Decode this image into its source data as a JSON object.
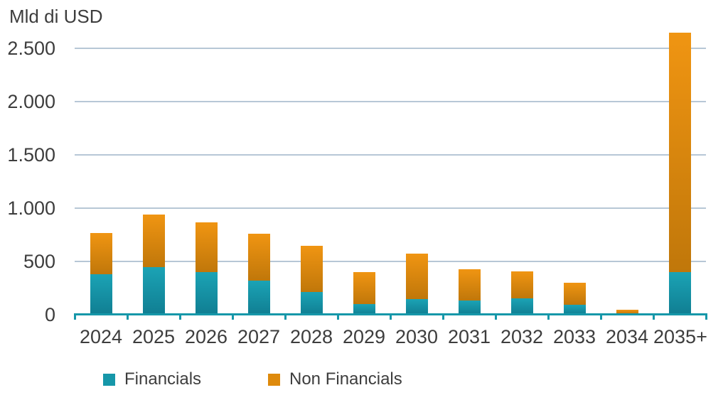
{
  "chart": {
    "unit_label": "Mld di USD",
    "text_color": "#3d3d3d",
    "grid_color": "#b7c7d6",
    "axis_color": "#1697a9",
    "background": "#ffffff"
  },
  "chart_data": {
    "type": "bar",
    "stacked": true,
    "title": "",
    "xlabel": "",
    "ylabel": "Mld di USD",
    "grid": true,
    "legend_position": "bottom",
    "ylim": [
      0,
      2650
    ],
    "categories": [
      "2024",
      "2025",
      "2026",
      "2027",
      "2028",
      "2029",
      "2030",
      "2031",
      "2032",
      "2033",
      "2034",
      "2035+"
    ],
    "y_axis": {
      "tick_labels": [
        "0",
        "500",
        "1.000",
        "1.500",
        "2.000",
        "2.500"
      ],
      "tick_values": [
        0,
        500,
        1000,
        1500,
        2000,
        2500
      ]
    },
    "series": [
      {
        "name": "Financials",
        "color": "#1697a9",
        "color_top": "#1ba3b5",
        "color_bottom": "#107e92",
        "values": [
          380,
          445,
          400,
          320,
          215,
          100,
          145,
          135,
          155,
          95,
          5,
          400
        ]
      },
      {
        "name": "Non Financials",
        "color": "#de8a0c",
        "color_top": "#f09512",
        "color_bottom": "#c0770a",
        "values": [
          390,
          495,
          470,
          440,
          435,
          300,
          430,
          290,
          255,
          205,
          45,
          2250
        ]
      }
    ],
    "totals": [
      770,
      940,
      870,
      760,
      650,
      400,
      575,
      425,
      410,
      300,
      50,
      2650
    ]
  }
}
